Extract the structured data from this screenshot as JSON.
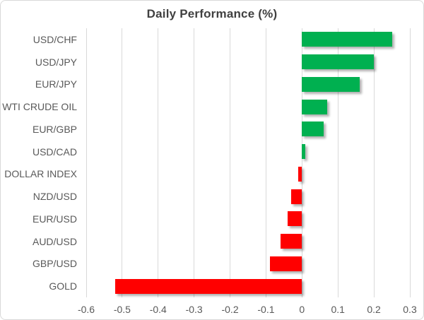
{
  "colors": {
    "positive": "#00B050",
    "negative": "#FF0000",
    "gridline": "#D9D9D9",
    "axis_text": "#595959",
    "title_text": "#404040",
    "background": "#FFFFFF"
  },
  "chart_data": {
    "type": "bar",
    "orientation": "horizontal",
    "title": "Daily Performance (%)",
    "xlabel": "",
    "ylabel": "",
    "categories": [
      "USD/CHF",
      "USD/JPY",
      "EUR/JPY",
      "WTI CRUDE OIL",
      "EUR/GBP",
      "USD/CAD",
      "DOLLAR INDEX",
      "NZD/USD",
      "EUR/USD",
      "AUD/USD",
      "GBP/USD",
      "GOLD"
    ],
    "values": [
      0.25,
      0.2,
      0.16,
      0.07,
      0.06,
      0.01,
      -0.01,
      -0.03,
      -0.04,
      -0.06,
      -0.09,
      -0.52
    ],
    "xlim": [
      -0.6,
      0.3
    ],
    "xticks": [
      -0.6,
      -0.5,
      -0.4,
      -0.3,
      -0.2,
      -0.1,
      0,
      0.1,
      0.2,
      0.3
    ],
    "xtick_labels": [
      "-0.6",
      "-0.5",
      "-0.4",
      "-0.3",
      "-0.2",
      "-0.1",
      "0",
      "0.1",
      "0.2",
      "0.3"
    ],
    "grid": true,
    "legend": "none",
    "positive_color": "#00B050",
    "negative_color": "#FF0000"
  }
}
